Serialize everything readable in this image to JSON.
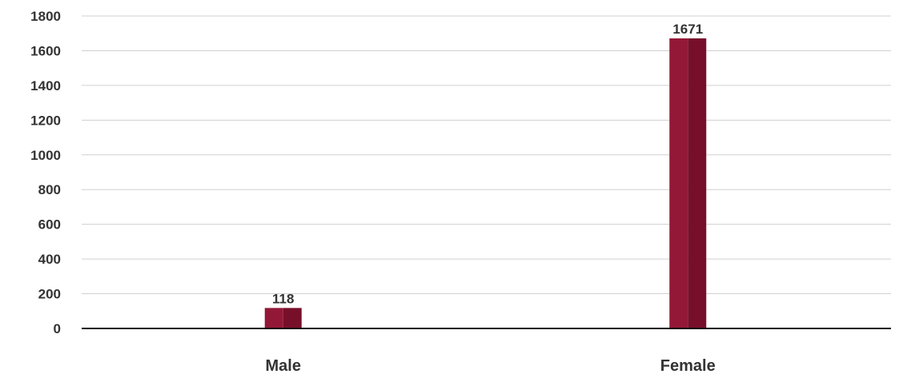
{
  "chart_data": {
    "type": "bar",
    "categories": [
      "Male",
      "Female"
    ],
    "values": [
      118,
      1671
    ],
    "data_labels": [
      "118",
      "1671"
    ],
    "y_ticks": [
      "1800",
      "1600",
      "1400",
      "1200",
      "1000",
      "800",
      "600",
      "400",
      "200",
      "0"
    ],
    "ylim": [
      0,
      1800
    ],
    "grid": true,
    "legend": "none",
    "colors": {
      "bar_light": "#931837",
      "bar_dark": "#780f2a",
      "grid": "#d0d0d0",
      "axis": "#111111",
      "text": "#333333"
    }
  }
}
